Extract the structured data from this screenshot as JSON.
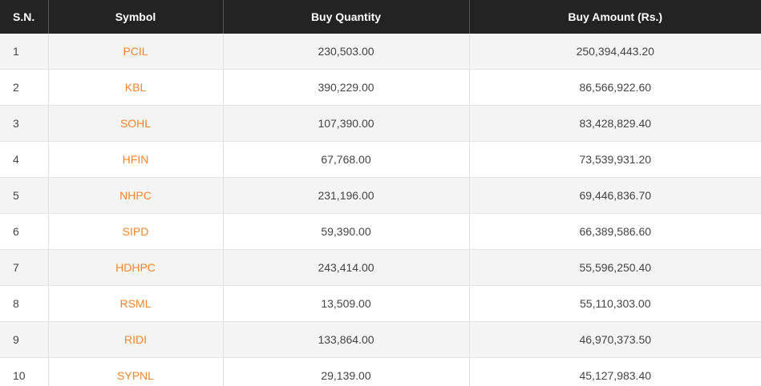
{
  "table": {
    "headers": [
      "S.N.",
      "Symbol",
      "Buy Quantity",
      "Buy Amount (Rs.)"
    ],
    "rows": [
      [
        "1",
        "PCIL",
        "230,503.00",
        "250,394,443.20"
      ],
      [
        "2",
        "KBL",
        "390,229.00",
        "86,566,922.60"
      ],
      [
        "3",
        "SOHL",
        "107,390.00",
        "83,428,829.40"
      ],
      [
        "4",
        "HFIN",
        "67,768.00",
        "73,539,931.20"
      ],
      [
        "5",
        "NHPC",
        "231,196.00",
        "69,446,836.70"
      ],
      [
        "6",
        "SIPD",
        "59,390.00",
        "66,389,586.60"
      ],
      [
        "7",
        "HDHPC",
        "243,414.00",
        "55,596,250.40"
      ],
      [
        "8",
        "RSML",
        "13,509.00",
        "55,110,303.00"
      ],
      [
        "9",
        "RIDI",
        "133,864.00",
        "46,970,373.50"
      ],
      [
        "10",
        "SYPNL",
        "29,139.00",
        "45,127,983.40"
      ]
    ]
  }
}
